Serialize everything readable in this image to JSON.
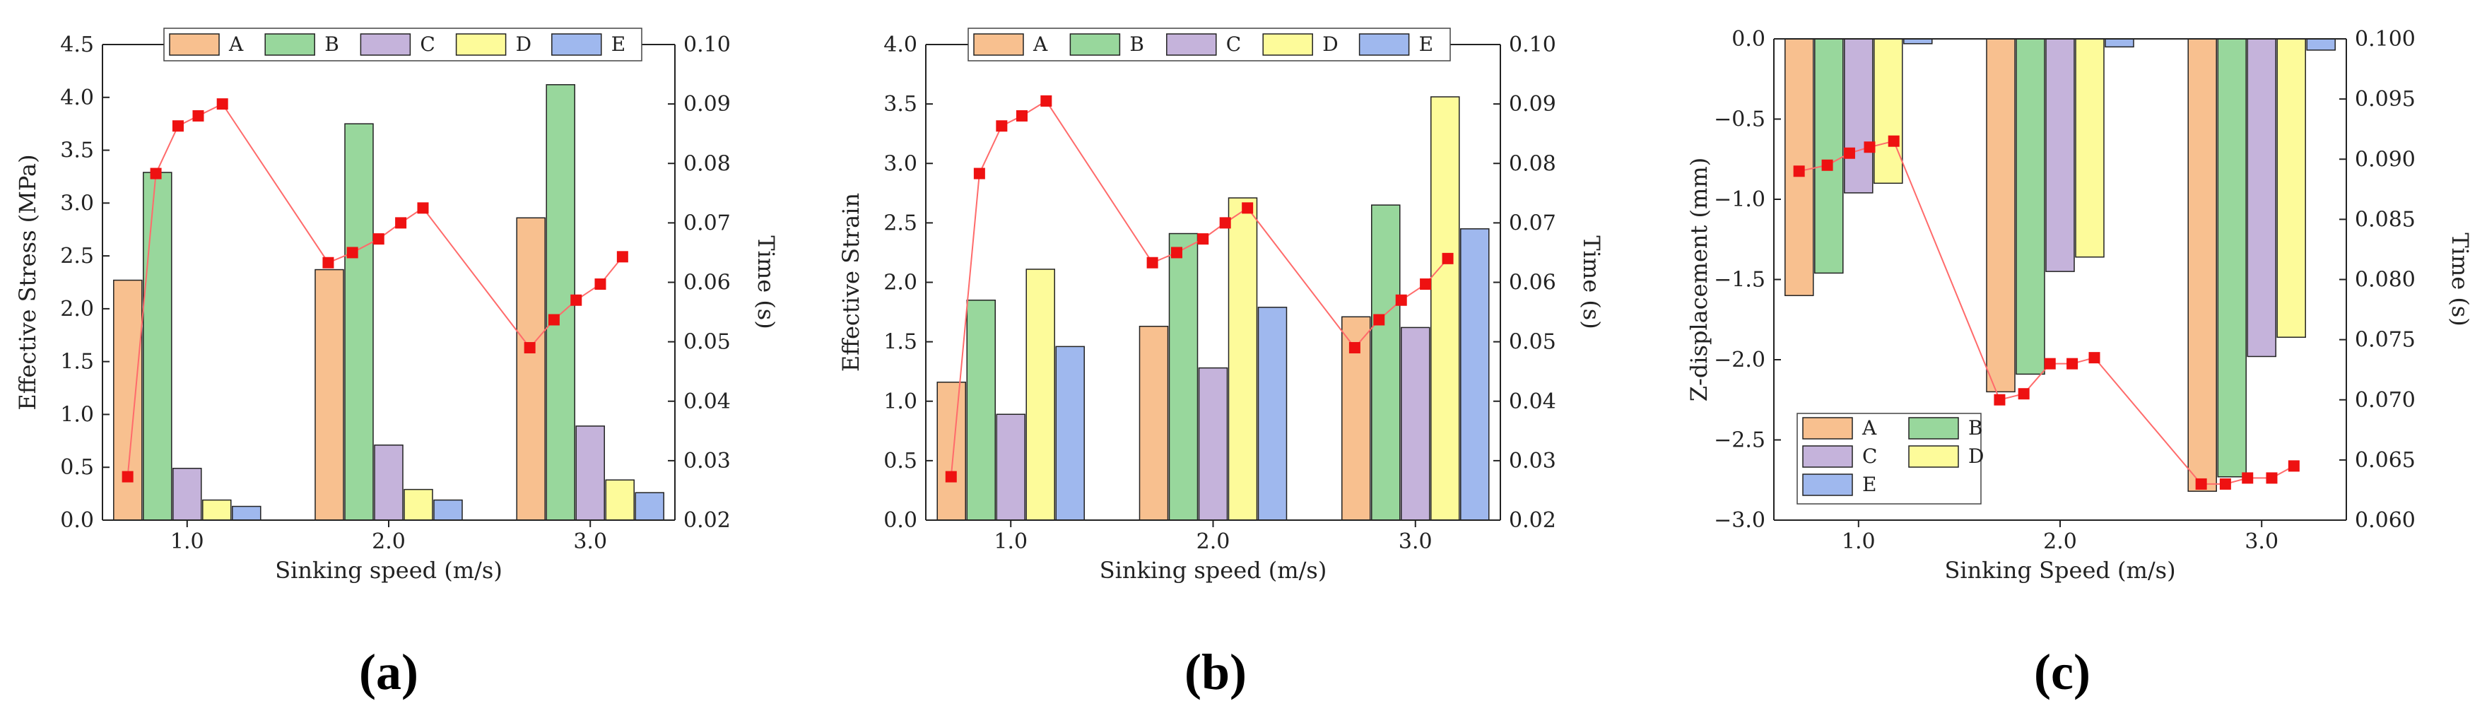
{
  "colors": {
    "A": "#f8c08f",
    "B": "#98d79c",
    "C": "#c5b3db",
    "D": "#fdfb9a",
    "E": "#9fb8ee",
    "time_line": "#ff6b6b",
    "time_marker": "#ee1111"
  },
  "chart_data": [
    {
      "panel": "(a)",
      "type": "bar",
      "categories": [
        "1.0",
        "2.0",
        "3.0"
      ],
      "xlabel": "Sinking speed (m/s)",
      "ylabel": "Effective Stress (MPa)",
      "ylabel_right": "Time (s)",
      "ylim": [
        0,
        4.5
      ],
      "yticks": [
        "0.0",
        "0.5",
        "1.0",
        "1.5",
        "2.0",
        "2.5",
        "3.0",
        "3.5",
        "4.0",
        "4.5"
      ],
      "y2lim": [
        0.02,
        0.1
      ],
      "y2ticks": [
        "0.02",
        "0.03",
        "0.04",
        "0.05",
        "0.06",
        "0.07",
        "0.08",
        "0.09",
        "0.10"
      ],
      "legend": [
        "A",
        "B",
        "C",
        "D",
        "E"
      ],
      "legend_position": "top",
      "series": [
        {
          "name": "A",
          "values": [
            2.27,
            2.37,
            2.86
          ]
        },
        {
          "name": "B",
          "values": [
            3.29,
            3.75,
            4.12
          ]
        },
        {
          "name": "C",
          "values": [
            0.49,
            0.71,
            0.89
          ]
        },
        {
          "name": "D",
          "values": [
            0.19,
            0.29,
            0.38
          ]
        },
        {
          "name": "E",
          "values": [
            0.13,
            0.19,
            0.26
          ]
        }
      ],
      "time_series": {
        "name": "Time",
        "x": [
          0.705,
          0.845,
          0.955,
          1.055,
          1.175,
          1.7,
          1.82,
          1.95,
          2.06,
          2.17,
          2.7,
          2.82,
          2.93,
          3.05,
          3.16
        ],
        "values": [
          0.0273,
          0.0783,
          0.0863,
          0.088,
          0.09,
          0.0633,
          0.065,
          0.0673,
          0.07,
          0.0725,
          0.049,
          0.0537,
          0.057,
          0.0597,
          0.0643
        ]
      }
    },
    {
      "panel": "(b)",
      "type": "bar",
      "categories": [
        "1.0",
        "2.0",
        "3.0"
      ],
      "xlabel": "Sinking speed (m/s)",
      "ylabel": "Effective Strain",
      "ylabel_right": "Time (s)",
      "ylim": [
        0,
        4.0
      ],
      "yticks": [
        "0.0",
        "0.5",
        "1.0",
        "1.5",
        "2.0",
        "2.5",
        "3.0",
        "3.5",
        "4.0"
      ],
      "y2lim": [
        0.02,
        0.1
      ],
      "y2ticks": [
        "0.02",
        "0.03",
        "0.04",
        "0.05",
        "0.06",
        "0.07",
        "0.08",
        "0.09",
        "0.10"
      ],
      "legend": [
        "A",
        "B",
        "C",
        "D",
        "E"
      ],
      "legend_position": "top",
      "series": [
        {
          "name": "A",
          "values": [
            1.16,
            1.63,
            1.71
          ]
        },
        {
          "name": "B",
          "values": [
            1.85,
            2.41,
            2.65
          ]
        },
        {
          "name": "C",
          "values": [
            0.89,
            1.28,
            1.62
          ]
        },
        {
          "name": "D",
          "values": [
            2.11,
            2.71,
            3.56
          ]
        },
        {
          "name": "E",
          "values": [
            1.46,
            1.79,
            2.45
          ]
        }
      ],
      "time_series": {
        "name": "Time",
        "x": [
          0.705,
          0.845,
          0.955,
          1.055,
          1.175,
          1.7,
          1.82,
          1.95,
          2.06,
          2.17,
          2.7,
          2.82,
          2.93,
          3.05,
          3.16
        ],
        "values": [
          0.0273,
          0.0783,
          0.0863,
          0.088,
          0.0905,
          0.0633,
          0.065,
          0.0673,
          0.07,
          0.0725,
          0.049,
          0.0537,
          0.057,
          0.0597,
          0.064
        ]
      }
    },
    {
      "panel": "(c)",
      "type": "bar",
      "categories": [
        "1.0",
        "2.0",
        "3.0"
      ],
      "xlabel": "Sinking Speed (m/s)",
      "ylabel": "Z-displacement (mm)",
      "ylabel_right": "Time (s)",
      "ylim": [
        -3.0,
        0.0
      ],
      "yticks": [
        "−3.0",
        "−2.5",
        "−2.0",
        "−1.5",
        "−1.0",
        "−0.5",
        "0.0"
      ],
      "y2lim": [
        0.06,
        0.1
      ],
      "y2ticks": [
        "0.060",
        "0.065",
        "0.070",
        "0.075",
        "0.080",
        "0.085",
        "0.090",
        "0.095",
        "0.100"
      ],
      "legend": [
        "A",
        "B",
        "C",
        "D",
        "E"
      ],
      "legend_position": "bottom-left",
      "series": [
        {
          "name": "A",
          "values": [
            -1.6,
            -2.2,
            -2.82
          ]
        },
        {
          "name": "B",
          "values": [
            -1.46,
            -2.09,
            -2.73
          ]
        },
        {
          "name": "C",
          "values": [
            -0.96,
            -1.45,
            -1.98
          ]
        },
        {
          "name": "D",
          "values": [
            -0.9,
            -1.36,
            -1.86
          ]
        },
        {
          "name": "E",
          "values": [
            -0.03,
            -0.05,
            -0.07
          ]
        }
      ],
      "time_series": {
        "name": "Time",
        "x": [
          0.705,
          0.845,
          0.955,
          1.055,
          1.175,
          1.7,
          1.82,
          1.95,
          2.06,
          2.17,
          2.7,
          2.82,
          2.93,
          3.05,
          3.16
        ],
        "values": [
          0.089,
          0.0895,
          0.0905,
          0.091,
          0.0915,
          0.07,
          0.0705,
          0.073,
          0.073,
          0.0735,
          0.063,
          0.063,
          0.0635,
          0.0635,
          0.0645
        ]
      }
    }
  ]
}
